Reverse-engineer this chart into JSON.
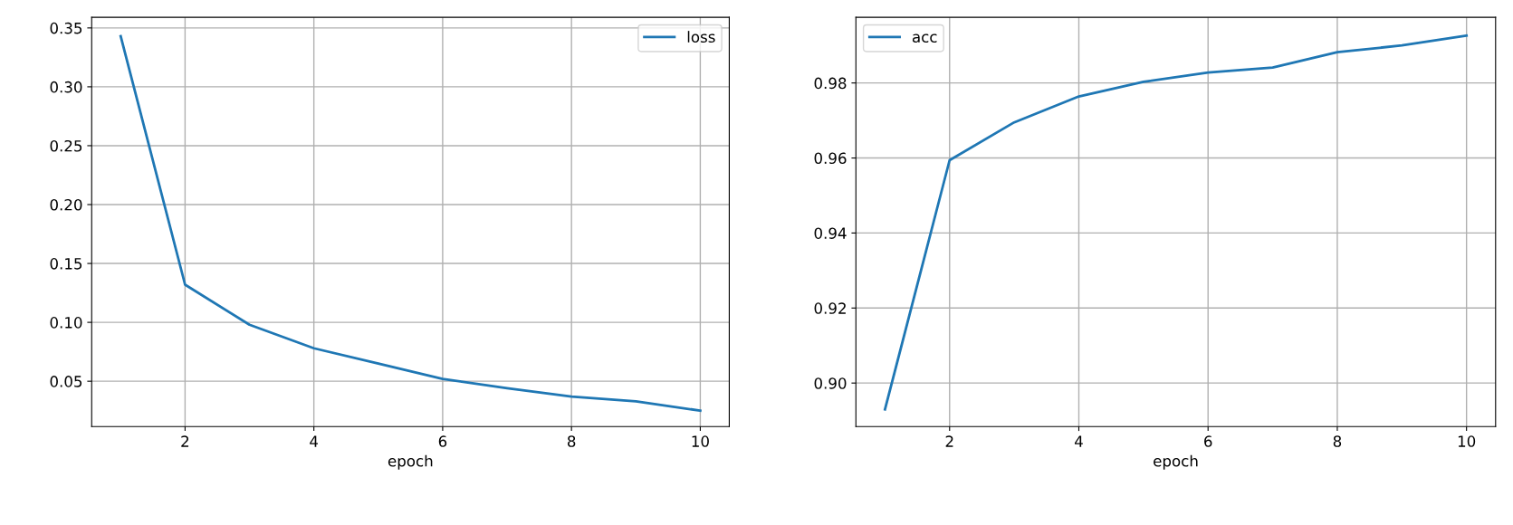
{
  "chart_data": [
    {
      "type": "line",
      "xlabel": "epoch",
      "x": [
        1,
        2,
        3,
        4,
        5,
        6,
        7,
        8,
        9,
        10
      ],
      "series": [
        {
          "name": "loss",
          "color": "#1f77b4",
          "values": [
            0.343,
            0.132,
            0.098,
            0.078,
            0.065,
            0.052,
            0.044,
            0.037,
            0.033,
            0.025
          ]
        }
      ],
      "xlim": [
        0.55,
        10.45
      ],
      "ylim": [
        0.0115,
        0.359
      ],
      "xticks": [
        2,
        4,
        6,
        8,
        10
      ],
      "yticks": [
        0.05,
        {
          "value": 0.1,
          "label": "0.10"
        },
        0.15,
        {
          "value": 0.2,
          "label": "0.20"
        },
        0.25,
        {
          "value": 0.3,
          "label": "0.30"
        },
        0.35
      ],
      "grid": true,
      "legend": "top right",
      "marker": "none",
      "line_style": "solid"
    },
    {
      "type": "line",
      "xlabel": "epoch",
      "x": [
        1,
        2,
        3,
        4,
        5,
        6,
        7,
        8,
        9,
        10
      ],
      "series": [
        {
          "name": "acc",
          "color": "#1f77b4",
          "values": [
            0.893,
            0.9594,
            0.9695,
            0.9764,
            0.9803,
            0.9828,
            0.9841,
            0.9882,
            0.99,
            0.9926
          ]
        }
      ],
      "xlim": [
        0.55,
        10.45
      ],
      "ylim": [
        0.8884,
        0.9975
      ],
      "xticks": [
        2,
        4,
        6,
        8,
        10
      ],
      "yticks": [
        {
          "value": 0.9,
          "label": "0.90"
        },
        {
          "value": 0.92,
          "label": "0.92"
        },
        {
          "value": 0.94,
          "label": "0.94"
        },
        {
          "value": 0.96,
          "label": "0.96"
        },
        {
          "value": 0.98,
          "label": "0.98"
        }
      ],
      "grid": true,
      "legend": "top left",
      "marker": "none",
      "line_style": "solid"
    }
  ]
}
